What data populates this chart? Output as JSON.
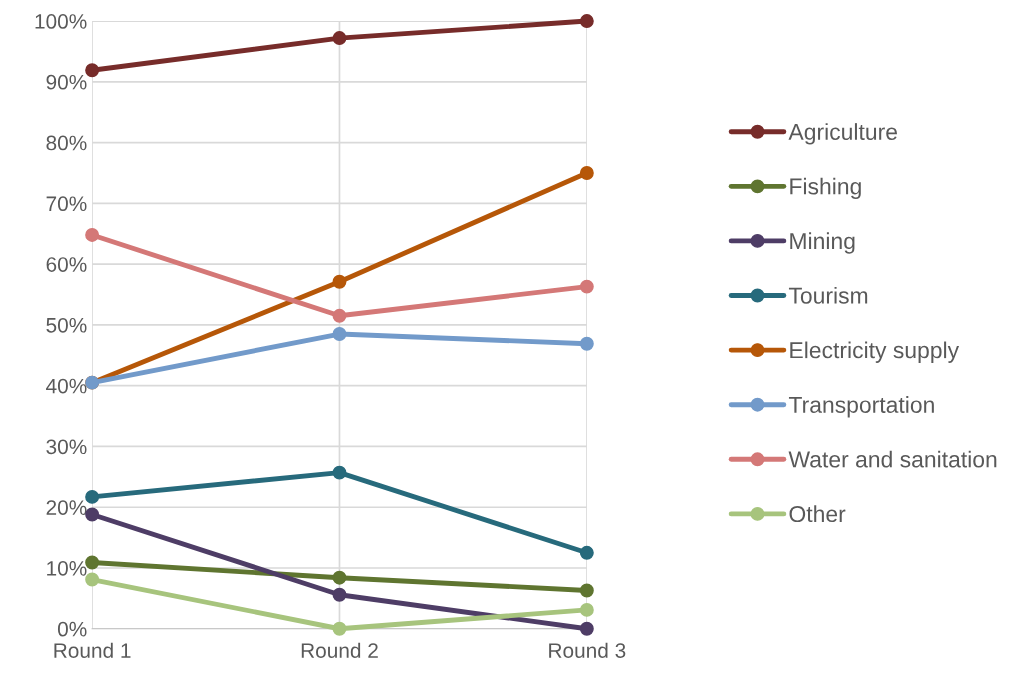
{
  "chart_data": {
    "type": "line",
    "categories": [
      "Round 1",
      "Round 2",
      "Round 3"
    ],
    "series": [
      {
        "name": "Agriculture",
        "color": "#772c2a",
        "values": [
          91.9,
          97.2,
          100
        ]
      },
      {
        "name": "Fishing",
        "color": "#5f7530",
        "values": [
          10.9,
          8.4,
          6.3
        ]
      },
      {
        "name": "Mining",
        "color": "#4e3d66",
        "values": [
          18.8,
          5.6,
          0
        ]
      },
      {
        "name": "Tourism",
        "color": "#276a7c",
        "values": [
          21.7,
          25.7,
          12.5
        ]
      },
      {
        "name": "Electricity supply",
        "color": "#b65708",
        "values": [
          40.5,
          57.1,
          75
        ]
      },
      {
        "name": "Transportation",
        "color": "#729aca",
        "values": [
          40.5,
          48.5,
          46.9
        ]
      },
      {
        "name": "Water and sanitation",
        "color": "#d47877",
        "values": [
          64.8,
          51.5,
          56.3
        ]
      },
      {
        "name": "Other",
        "color": "#a7c47d",
        "values": [
          8.1,
          0,
          3.1
        ]
      }
    ],
    "ylim": [
      0,
      100
    ],
    "yticks": [
      {
        "value": 0,
        "label": "0%"
      },
      {
        "value": 10,
        "label": "10%"
      },
      {
        "value": 20,
        "label": "20%"
      },
      {
        "value": 30,
        "label": "30%"
      },
      {
        "value": 40,
        "label": "40%"
      },
      {
        "value": 50,
        "label": "50%"
      },
      {
        "value": 60,
        "label": "60%"
      },
      {
        "value": 70,
        "label": "70%"
      },
      {
        "value": 80,
        "label": "80%"
      },
      {
        "value": 90,
        "label": "90%"
      },
      {
        "value": 100,
        "label": "100%"
      }
    ],
    "grid": true,
    "legend": "right",
    "marker": "circle",
    "line_style": "solid"
  }
}
